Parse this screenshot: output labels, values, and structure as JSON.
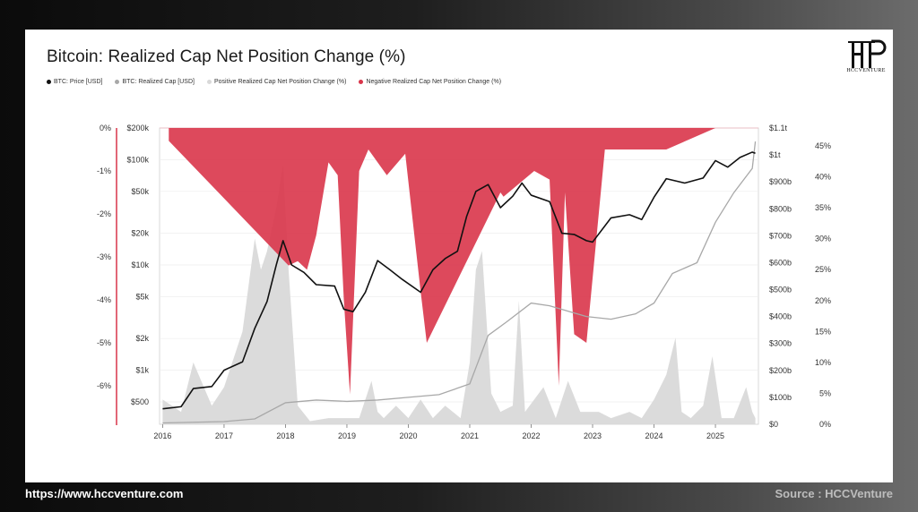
{
  "title": "Bitcoin: Realized Cap Net Position Change (%)",
  "legend": [
    {
      "label": "BTC: Price [USD]",
      "color": "#111111"
    },
    {
      "label": "BTC: Realized Cap [USD]",
      "color": "#a8a8a8"
    },
    {
      "label": "Positive Realized Cap Net Position Change (%)",
      "color": "#d9d9d9"
    },
    {
      "label": "Negative Realized Cap Net Position Change (%)",
      "color": "#d9354a"
    }
  ],
  "logo_text": "HCCVENTURE",
  "footer": {
    "url": "https://www.hccventure.com",
    "source": "Source : HCCVenture"
  },
  "chart_data": {
    "type": "area",
    "title": "Bitcoin: Realized Cap Net Position Change (%)",
    "x_ticks": [
      "2016",
      "2017",
      "2018",
      "2019",
      "2020",
      "2021",
      "2022",
      "2023",
      "2024",
      "2025"
    ],
    "axes": {
      "far_left_negative_pct_ticks": [
        "0%",
        "-1%",
        "-2%",
        "-3%",
        "-4%",
        "-5%",
        "-6%"
      ],
      "left_price_ticks": [
        "$200k",
        "$100k",
        "$50k",
        "$20k",
        "$10k",
        "$5k",
        "$2k",
        "$1k",
        "$500"
      ],
      "price_scale": "log",
      "right_realized_cap_ticks": [
        "$1.1t",
        "$1t",
        "$900b",
        "$800b",
        "$700b",
        "$600b",
        "$500b",
        "$400b",
        "$300b",
        "$200b",
        "$100b",
        "$0"
      ],
      "right_positive_pct_ticks": [
        "45%",
        "40%",
        "35%",
        "30%",
        "25%",
        "20%",
        "15%",
        "10%",
        "5%",
        "0%"
      ]
    },
    "series": [
      {
        "name": "BTC: Price [USD]",
        "color": "#111111",
        "x": [
          2016.0,
          2016.3,
          2016.5,
          2016.8,
          2017.0,
          2017.3,
          2017.5,
          2017.7,
          2017.85,
          2017.96,
          2018.1,
          2018.3,
          2018.5,
          2018.8,
          2018.95,
          2019.1,
          2019.3,
          2019.5,
          2019.7,
          2019.9,
          2020.2,
          2020.4,
          2020.6,
          2020.8,
          2020.95,
          2021.1,
          2021.3,
          2021.5,
          2021.7,
          2021.85,
          2022.0,
          2022.3,
          2022.5,
          2022.7,
          2022.9,
          2023.0,
          2023.3,
          2023.6,
          2023.8,
          2024.0,
          2024.2,
          2024.5,
          2024.8,
          2025.0,
          2025.2,
          2025.4,
          2025.6,
          2025.65
        ],
        "values": [
          430,
          450,
          670,
          700,
          1000,
          1200,
          2500,
          4500,
          10000,
          17000,
          10000,
          8500,
          6500,
          6300,
          3800,
          3600,
          5500,
          11000,
          9000,
          7300,
          5500,
          9000,
          11500,
          13500,
          29000,
          50000,
          58000,
          35000,
          45000,
          60000,
          46000,
          40000,
          20000,
          19500,
          17000,
          16500,
          28000,
          30000,
          27000,
          44000,
          66000,
          60000,
          67000,
          98000,
          85000,
          105000,
          118000,
          115000
        ]
      },
      {
        "name": "BTC: Realized Cap [USD]",
        "color": "#a8a8a8",
        "x": [
          2016.0,
          2017.0,
          2017.5,
          2018.0,
          2018.5,
          2019.0,
          2019.5,
          2020.0,
          2020.5,
          2021.0,
          2021.3,
          2021.6,
          2022.0,
          2022.3,
          2022.6,
          2022.9,
          2023.3,
          2023.7,
          2024.0,
          2024.3,
          2024.7,
          2025.0,
          2025.3,
          2025.6,
          2025.65
        ],
        "values": [
          5,
          10,
          20,
          80,
          90,
          85,
          90,
          100,
          110,
          150,
          330,
          380,
          450,
          440,
          420,
          400,
          390,
          410,
          450,
          560,
          600,
          750,
          860,
          950,
          1050
        ]
      },
      {
        "name": "Positive Realized Cap Net Position Change (%)",
        "color": "#d9d9d9",
        "x": [
          2016.0,
          2016.3,
          2016.5,
          2016.8,
          2017.0,
          2017.3,
          2017.5,
          2017.6,
          2017.7,
          2017.85,
          2017.96,
          2018.05,
          2018.2,
          2018.4,
          2018.7,
          2019.2,
          2019.4,
          2019.5,
          2019.6,
          2019.8,
          2020.0,
          2020.2,
          2020.4,
          2020.6,
          2020.85,
          2021.0,
          2021.1,
          2021.2,
          2021.35,
          2021.5,
          2021.7,
          2021.8,
          2021.9,
          2022.2,
          2022.4,
          2022.6,
          2022.8,
          2023.1,
          2023.3,
          2023.6,
          2023.8,
          2024.0,
          2024.2,
          2024.35,
          2024.45,
          2024.6,
          2024.8,
          2024.95,
          2025.1,
          2025.3,
          2025.5,
          2025.6,
          2025.65
        ],
        "values": [
          4,
          2,
          10,
          3,
          6,
          15,
          30,
          25,
          28,
          35,
          42,
          25,
          3,
          0.5,
          1,
          1,
          7,
          2,
          1,
          3,
          1,
          4,
          1,
          3,
          1,
          10,
          25,
          28,
          5,
          2,
          3,
          20,
          2,
          6,
          1,
          7,
          2,
          2,
          1,
          2,
          1,
          4,
          8,
          14,
          2,
          1,
          3,
          11,
          1,
          1,
          6,
          2,
          1
        ]
      },
      {
        "name": "Negative Realized Cap Net Position Change (%)",
        "color": "#d9354a",
        "x": [
          2016.1,
          2018.05,
          2018.2,
          2018.35,
          2018.5,
          2018.7,
          2018.85,
          2018.95,
          2019.05,
          2019.2,
          2019.35,
          2019.65,
          2019.95,
          2020.2,
          2020.3,
          2021.5,
          2021.55,
          2022.05,
          2022.3,
          2022.45,
          2022.55,
          2022.7,
          2022.9,
          2023.2,
          2024.2,
          2025.0
        ],
        "values": [
          -0.3,
          -3.2,
          -3.1,
          -3.3,
          -2.5,
          -0.8,
          -1.1,
          -4.0,
          -6.2,
          -1.0,
          -0.5,
          -1.1,
          -0.6,
          -3.8,
          -5.0,
          -1.5,
          -1.6,
          -1.0,
          -1.2,
          -6.0,
          -1.5,
          -4.8,
          -5.0,
          -0.5,
          -0.5,
          0
        ]
      }
    ],
    "grid": true
  }
}
